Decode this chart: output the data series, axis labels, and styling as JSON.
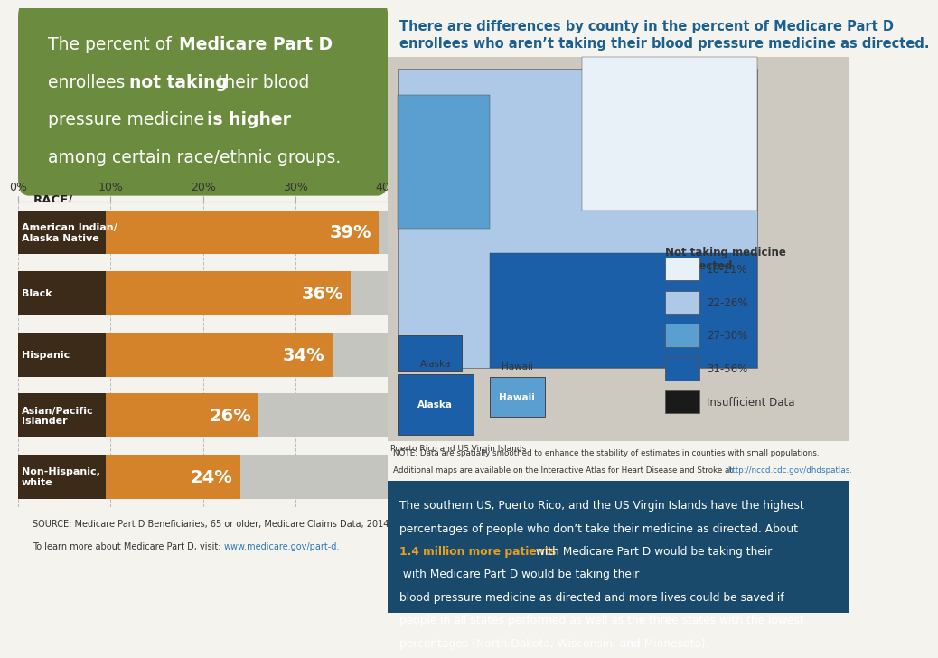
{
  "bg_color_left": "#f5f3ee",
  "bg_color_right": "#d9d5cc",
  "header_green": "#6b8c3e",
  "bar_orange": "#d4832a",
  "bar_gray": "#c5c5c0",
  "bar_label_bg": "#3d2b1a",
  "categories": [
    "American Indian/\nAlaska Native",
    "Black",
    "Hispanic",
    "Asian/Pacific\nIslander",
    "Non-Hispanic,\nwhite"
  ],
  "values": [
    39,
    36,
    34,
    26,
    24
  ],
  "x_ticks": [
    0,
    10,
    20,
    30,
    40
  ],
  "x_max": 40,
  "title_right_line1": "There are differences by county in the percent of Medicare Part D",
  "title_right_line2": "enrollees who aren’t taking their blood pressure medicine as directed.",
  "map_title_color": "#1a6090",
  "bottom_box_color": "#1a4a6b",
  "legend_title": "Not taking medicine\nas directed",
  "legend_items": [
    "16-21%",
    "22-26%",
    "27-30%",
    "31-56%",
    "Insufficient Data"
  ],
  "legend_colors": [
    "#e8f0f8",
    "#aec8e8",
    "#5a9fd0",
    "#1a5fa8",
    "#1a1a1a"
  ],
  "source_color": "#333333",
  "link_color": "#2878be",
  "note_link_color": "#2878be"
}
